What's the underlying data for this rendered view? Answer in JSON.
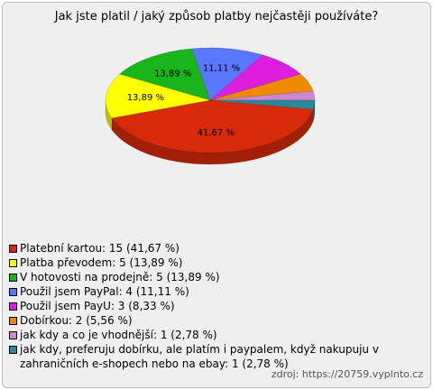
{
  "chart_data": {
    "type": "pie",
    "title": "Jak jste platil / jaký způsob platby nejčastěji používáte?",
    "categories": [
      "Platební kartou: 15 (41,67 %)",
      "Platba převodem: 5 (13,89 %)",
      "V hotovosti na prodejně: 5 (13,89 %)",
      "Použil jsem PayPal: 4 (11,11 %)",
      "Použil jsem PayU: 3 (8,33 %)",
      "Dobírkou: 2 (5,56 %)",
      "jak kdy a co je vhodnější: 1 (2,78 %)",
      "jak kdy, preferuju dobírku, ale platím i paypalem, když nakupuju v zahraničních e-shopech nebo na ebay: 1 (2,78 %)"
    ],
    "values": [
      41.67,
      13.89,
      13.89,
      11.11,
      8.33,
      5.56,
      2.78,
      2.78
    ],
    "value_labels": [
      "41,67 %",
      "13,89 %",
      "13,89 %",
      "11,11 %",
      null,
      null,
      null,
      null
    ],
    "colors": [
      "#d8290b",
      "#ffff00",
      "#1ab51a",
      "#5a78ff",
      "#dd1fdd",
      "#ee8a00",
      "#cc88cc",
      "#2a8898"
    ],
    "source": "zdroj: https://20759.vyplnto.cz"
  }
}
